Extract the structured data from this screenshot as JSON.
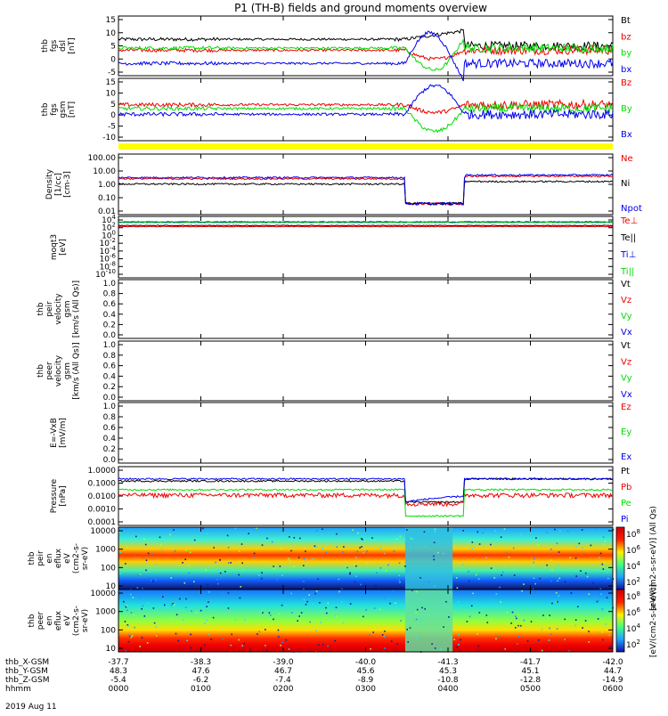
{
  "title": "P1 (TH-B) fields and ground moments overview",
  "colors": {
    "black": "#000000",
    "red": "#ee0000",
    "green": "#00dd00",
    "blue": "#0000ee",
    "yellow": "#ffff00"
  },
  "chart_data": [
    {
      "type": "line",
      "panel": "fgs_dsl",
      "ylabel": [
        "thb",
        "fgs",
        "dsl",
        "[nT]"
      ],
      "yticks": [
        "15",
        "10",
        "5",
        "0",
        "-5"
      ],
      "ylim": [
        -8,
        16
      ],
      "series": [
        {
          "name": "Bt",
          "color": "black",
          "level": 7
        },
        {
          "name": "bz",
          "color": "red",
          "level": 2
        },
        {
          "name": "by",
          "color": "green",
          "level": 3
        },
        {
          "name": "bx",
          "color": "blue",
          "level": -4
        }
      ]
    },
    {
      "type": "line",
      "panel": "fgs_gsm",
      "ylabel": [
        "thb",
        "fgs",
        "gsm",
        "[nT]"
      ],
      "yticks": [
        "15",
        "10",
        "5",
        "0",
        "-5",
        "-10"
      ],
      "ylim": [
        -13,
        16
      ],
      "series": [
        {
          "name": "Bz",
          "color": "red",
          "level": 4
        },
        {
          "name": "By",
          "color": "green",
          "level": 2
        },
        {
          "name": "Bx",
          "color": "blue",
          "level": -1
        }
      ]
    },
    {
      "type": "bar",
      "panel": "mode_bar",
      "color": "yellow"
    },
    {
      "type": "line",
      "panel": "density",
      "log": true,
      "ylabel": [
        "Density",
        "[1/cc]",
        "[cm-3]"
      ],
      "yticks": [
        "100.00",
        "10.00",
        "1.00",
        "0.10",
        "0.01"
      ],
      "ylim": [
        0.01,
        200
      ],
      "series": [
        {
          "name": "Ne",
          "color": "red",
          "level": 4
        },
        {
          "name": "Ni",
          "color": "black",
          "level": 1.5
        },
        {
          "name": "Npot",
          "color": "blue",
          "level": 5
        }
      ]
    },
    {
      "type": "line",
      "panel": "temperature",
      "log": true,
      "ylabel": [
        "moqt3",
        "[eV]"
      ],
      "yticks": [
        "10^4",
        "10^2",
        "10^0",
        "10^-2",
        "10^-4",
        "10^-6",
        "10^-8",
        "10^-10"
      ],
      "ylim": [
        1e-10,
        100000.0
      ],
      "series": [
        {
          "name": "Te⊥",
          "color": "red"
        },
        {
          "name": "Te||",
          "color": "black"
        },
        {
          "name": "Ti⊥",
          "color": "blue"
        },
        {
          "name": "Ti||",
          "color": "green"
        }
      ]
    },
    {
      "type": "line",
      "panel": "peir_velocity",
      "ylabel": [
        "thb",
        "peir",
        "velocity",
        "gsm",
        "[km/s (All Qs)]"
      ],
      "yticks": [
        "1.0",
        "0.8",
        "0.6",
        "0.4",
        "0.2",
        "0.0"
      ],
      "ylim": [
        0,
        1
      ],
      "series": [
        {
          "name": "Vt",
          "color": "black"
        },
        {
          "name": "Vz",
          "color": "red"
        },
        {
          "name": "Vy",
          "color": "green"
        },
        {
          "name": "Vx",
          "color": "blue"
        }
      ]
    },
    {
      "type": "line",
      "panel": "peer_velocity",
      "ylabel": [
        "thb",
        "peer",
        "velocity",
        "gsm",
        "[km/s (All Qs)]"
      ],
      "yticks": [
        "1.0",
        "0.8",
        "0.6",
        "0.4",
        "0.2",
        "0.0"
      ],
      "ylim": [
        0,
        1
      ],
      "series": [
        {
          "name": "Vt",
          "color": "black"
        },
        {
          "name": "Vz",
          "color": "red"
        },
        {
          "name": "Vy",
          "color": "green"
        },
        {
          "name": "Vx",
          "color": "blue"
        }
      ]
    },
    {
      "type": "line",
      "panel": "efield",
      "ylabel": [
        "E=-VxB",
        "[mV/m]"
      ],
      "yticks": [
        "1.0",
        "0.8",
        "0.6",
        "0.4",
        "0.2",
        "0.0"
      ],
      "ylim": [
        0,
        1
      ],
      "series": [
        {
          "name": "Ez",
          "color": "red"
        },
        {
          "name": "Ey",
          "color": "green"
        },
        {
          "name": "Ex",
          "color": "blue"
        }
      ]
    },
    {
      "type": "line",
      "panel": "pressure",
      "log": true,
      "ylabel": [
        "Pressure",
        "[nPa]"
      ],
      "yticks": [
        "1.0000",
        "0.1000",
        "0.0100",
        "0.0010",
        "0.0001"
      ],
      "ylim": [
        0.0001,
        1.5
      ],
      "series": [
        {
          "name": "Pt",
          "color": "black",
          "level": 0.2
        },
        {
          "name": "Pb",
          "color": "red",
          "level": 0.015
        },
        {
          "name": "Pe",
          "color": "green",
          "level": 0.04
        },
        {
          "name": "Pi",
          "color": "blue",
          "level": 0.3
        }
      ]
    },
    {
      "type": "heatmap",
      "panel": "peir_spec",
      "ylabel": [
        "thb",
        "peir",
        "en",
        "eflux",
        "eV",
        "(cm2-s-",
        "sr-eV)"
      ],
      "yticks": [
        "10000",
        "1000",
        "100",
        "10"
      ],
      "colorbar": {
        "ticks": [
          "10^8",
          "10^6",
          "10^4",
          "10^2"
        ],
        "label": "[eV/(cm2-s-sr-eV)] (All Qs)"
      }
    },
    {
      "type": "heatmap",
      "panel": "peer_spec",
      "ylabel": [
        "thb",
        "peer",
        "en",
        "eflux",
        "eV",
        "(cm2-s-",
        "sr-eV)"
      ],
      "yticks": [
        "10000",
        "1000",
        "100",
        "10"
      ],
      "colorbar": {
        "ticks": [
          "10^8",
          "10^6",
          "10^4",
          "10^2"
        ],
        "label": "[eV/(cm2-s-sr-eV)]"
      }
    }
  ],
  "xaxis": {
    "rows": [
      {
        "label": "thb_X-GSM",
        "values": [
          "-37.7",
          "-38.3",
          "-39.0",
          "-40.0",
          "-41.3",
          "-41.7",
          "-42.0"
        ]
      },
      {
        "label": "thb_Y-GSM",
        "values": [
          "48.3",
          "47.6",
          "46.7",
          "45.6",
          "45.3",
          "45.1",
          "44.7"
        ]
      },
      {
        "label": "thb_Z-GSM",
        "values": [
          "-5.4",
          "-6.2",
          "-7.4",
          "-8.9",
          "-10.8",
          "-12.8",
          "-14.9"
        ]
      },
      {
        "label": "hhmm",
        "values": [
          "0000",
          "0100",
          "0200",
          "0300",
          "0400",
          "0500",
          "0600"
        ]
      }
    ],
    "date": "2019 Aug 11"
  }
}
